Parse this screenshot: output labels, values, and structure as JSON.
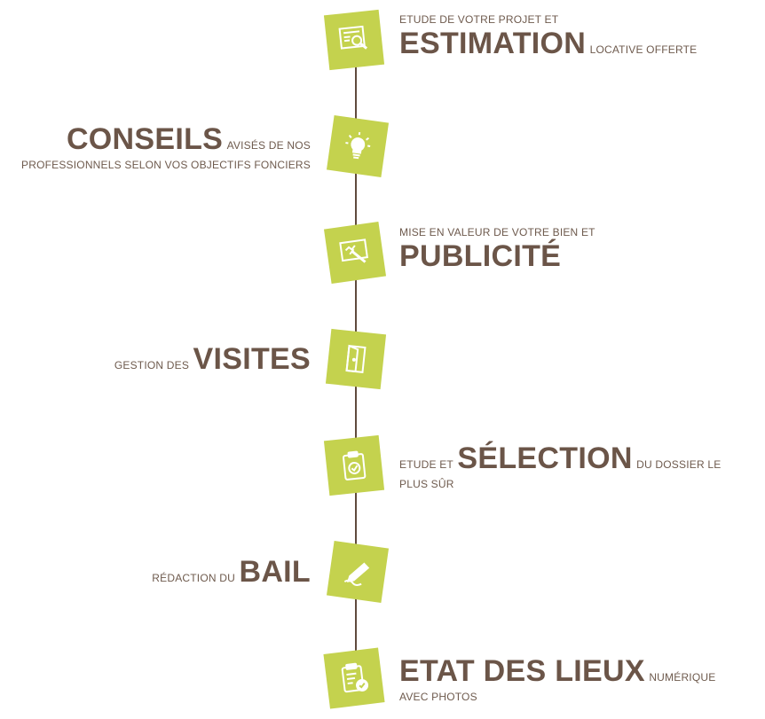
{
  "colors": {
    "icon_fill": "#c4d24e",
    "line": "#5f4a3e",
    "text": "#6b5548"
  },
  "steps": [
    {
      "icon": "search-document-icon",
      "side": "right",
      "before": "ETUDE DE VOTRE PROJET ET",
      "keyword": "ESTIMATION",
      "after": "LOCATIVE OFFERTE"
    },
    {
      "icon": "lightbulb-icon",
      "side": "left",
      "before": "",
      "keyword": "CONSEILS",
      "after": "AVISÉS DE NOS PROFESSIONNELS SELON VOS OBJECTIFS FONCIERS"
    },
    {
      "icon": "advertising-board-icon",
      "side": "right",
      "before": "MISE EN VALEUR DE VOTRE BIEN ET",
      "keyword": "PUBLICITÉ",
      "after": ""
    },
    {
      "icon": "door-icon",
      "side": "left",
      "before": "GESTION DES",
      "keyword": "VISITES",
      "after": ""
    },
    {
      "icon": "clipboard-check-icon",
      "side": "right",
      "before": "ETUDE ET",
      "keyword": "SÉLECTION",
      "after": "DU DOSSIER LE PLUS SÛR"
    },
    {
      "icon": "pen-writing-icon",
      "side": "left",
      "before": "RÉDACTION DU",
      "keyword": "BAIL",
      "after": ""
    },
    {
      "icon": "checklist-icon",
      "side": "right",
      "before": "",
      "keyword": "ETAT DES LIEUX",
      "after": "NUMÉRIQUE AVEC PHOTOS"
    }
  ]
}
